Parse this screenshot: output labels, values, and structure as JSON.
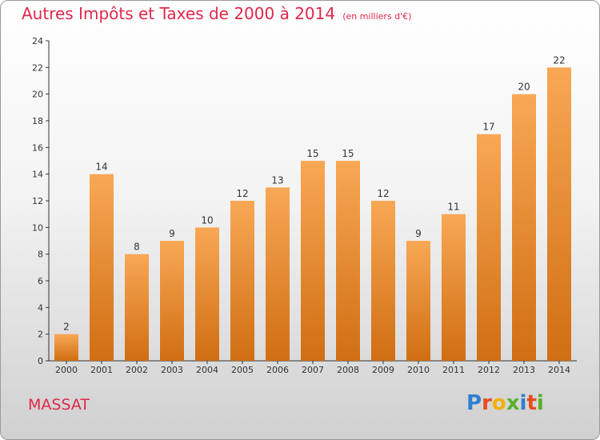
{
  "title": "Autres Impôts et Taxes de 2000 à 2014",
  "title_unit": "(en milliers d'€)",
  "commune": "MASSAT",
  "logo": {
    "text": "Proxiti",
    "letters": [
      {
        "ch": "P",
        "color": "#2f7fd0"
      },
      {
        "ch": "r",
        "color": "#e84c1c"
      },
      {
        "ch": "o",
        "color": "#f2b000"
      },
      {
        "ch": "x",
        "color": "#59b02c"
      },
      {
        "ch": "i",
        "color": "#2f7fd0"
      },
      {
        "ch": "t",
        "color": "#e84c1c"
      },
      {
        "ch": "i",
        "color": "#59b02c"
      }
    ]
  },
  "colors": {
    "title": "#e0284a",
    "bar_top": "#f8a855",
    "bar_bottom": "#d06e12",
    "axis": "#333333"
  },
  "chart_data": {
    "type": "bar",
    "categories": [
      "2000",
      "2001",
      "2002",
      "2003",
      "2004",
      "2005",
      "2006",
      "2007",
      "2008",
      "2009",
      "2010",
      "2011",
      "2012",
      "2013",
      "2014"
    ],
    "values": [
      2,
      14,
      8,
      9,
      10,
      12,
      13,
      15,
      15,
      12,
      9,
      11,
      17,
      20,
      22
    ],
    "ylim": [
      0,
      24
    ],
    "yticks": [
      0,
      2,
      4,
      6,
      8,
      10,
      12,
      14,
      16,
      18,
      20,
      22,
      24
    ],
    "grid": false,
    "data_labels": true
  }
}
